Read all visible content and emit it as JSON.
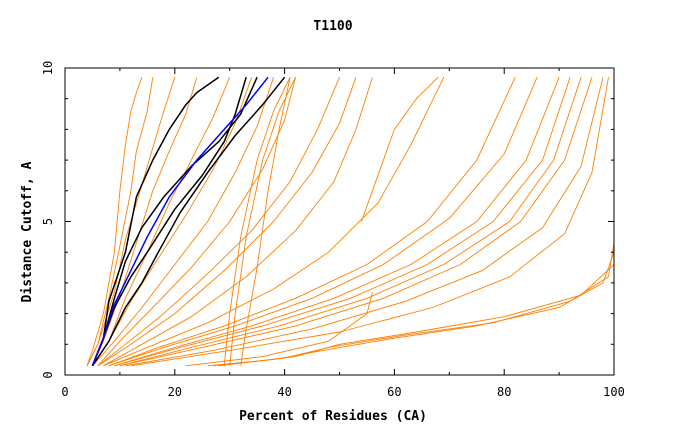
{
  "chart_data": {
    "type": "line",
    "title": "T1100",
    "xlabel": "Percent of Residues (CA)",
    "ylabel": "Distance Cutoff, A",
    "xlim": [
      0,
      100
    ],
    "ylim": [
      0,
      10
    ],
    "x_ticks": [
      0,
      20,
      40,
      60,
      80,
      100
    ],
    "y_ticks": [
      0,
      5,
      10
    ],
    "grid": false,
    "colors": {
      "bulk": "#ff8000",
      "highlight": "#000000",
      "best": "#0000ff"
    },
    "series_groups": [
      {
        "role": "bulk",
        "color": "#ff8000",
        "curves": [
          {
            "x": [
              4,
              5,
              7,
              9,
              10,
              11,
              12,
              13,
              14
            ],
            "y": [
              0.3,
              0.8,
              2,
              4,
              6,
              7.5,
              8.6,
              9.2,
              9.7
            ]
          },
          {
            "x": [
              4,
              6,
              8,
              10,
              12,
              13,
              15,
              16
            ],
            "y": [
              0.3,
              1,
              2.5,
              4.2,
              6,
              7.3,
              8.6,
              9.7
            ]
          },
          {
            "x": [
              4,
              6,
              9,
              11,
              14,
              16,
              18,
              20
            ],
            "y": [
              0.3,
              1,
              2.7,
              4.4,
              6.2,
              7.4,
              8.6,
              9.7
            ]
          },
          {
            "x": [
              5,
              7,
              10,
              13,
              16,
              19,
              22,
              24
            ],
            "y": [
              0.3,
              1.1,
              2.6,
              4.3,
              6,
              7.3,
              8.5,
              9.7
            ]
          },
          {
            "x": [
              5,
              8,
              11,
              15,
              19,
              23,
              27,
              30
            ],
            "y": [
              0.3,
              1.1,
              2.5,
              4,
              5.6,
              7,
              8.4,
              9.7
            ]
          },
          {
            "x": [
              5,
              8,
              12,
              17,
              22,
              27,
              31,
              34
            ],
            "y": [
              0.3,
              1.1,
              2.4,
              3.8,
              5.2,
              6.7,
              8.2,
              9.7
            ]
          },
          {
            "x": [
              5,
              9,
              14,
              20,
              26,
              31,
              35,
              38
            ],
            "y": [
              0.3,
              1.1,
              2.2,
              3.6,
              5,
              6.6,
              8.1,
              9.7
            ]
          },
          {
            "x": [
              6,
              10,
              16,
              23,
              30,
              36,
              40,
              42
            ],
            "y": [
              0.3,
              1.1,
              2.2,
              3.5,
              5,
              6.7,
              8.3,
              9.7
            ]
          },
          {
            "x": [
              6,
              11,
              18,
              26,
              34,
              41,
              46,
              50
            ],
            "y": [
              0.3,
              1,
              2,
              3.3,
              4.7,
              6.3,
              8,
              9.7
            ]
          },
          {
            "x": [
              6,
              12,
              20,
              29,
              38,
              45,
              50,
              53
            ],
            "y": [
              0.3,
              1,
              2,
              3.4,
              5,
              6.6,
              8.2,
              9.7
            ]
          },
          {
            "x": [
              7,
              14,
              23,
              33,
              42,
              49,
              53,
              56
            ],
            "y": [
              0.3,
              1,
              1.9,
              3.2,
              4.7,
              6.3,
              8,
              9.7
            ]
          },
          {
            "x": [
              7,
              15,
              26,
              38,
              48,
              57,
              63,
              69
            ],
            "y": [
              0.3,
              0.9,
              1.7,
              2.8,
              4,
              5.6,
              7.5,
              9.7
            ]
          },
          {
            "x": [
              8,
              17,
              29,
              42,
              55,
              66,
              75,
              82
            ],
            "y": [
              0.3,
              0.9,
              1.6,
              2.5,
              3.6,
              5,
              7,
              9.7
            ]
          },
          {
            "x": [
              8,
              18,
              31,
              45,
              58,
              70,
              80,
              86
            ],
            "y": [
              0.3,
              0.9,
              1.6,
              2.5,
              3.6,
              5.1,
              7.2,
              9.7
            ]
          },
          {
            "x": [
              9,
              20,
              34,
              49,
              63,
              75,
              84,
              90
            ],
            "y": [
              0.3,
              0.9,
              1.6,
              2.5,
              3.6,
              5,
              7,
              9.7
            ]
          },
          {
            "x": [
              9,
              21,
              36,
              52,
              66,
              78,
              87,
              92
            ],
            "y": [
              0.3,
              0.9,
              1.6,
              2.5,
              3.6,
              5,
              7,
              9.7
            ]
          },
          {
            "x": [
              10,
              23,
              39,
              55,
              69,
              81,
              89,
              94
            ],
            "y": [
              0.3,
              0.9,
              1.6,
              2.5,
              3.6,
              5,
              7,
              9.7
            ]
          },
          {
            "x": [
              10,
              25,
              42,
              58,
              72,
              83,
              91,
              96
            ],
            "y": [
              0.3,
              0.9,
              1.6,
              2.5,
              3.6,
              5,
              7,
              9.7
            ]
          },
          {
            "x": [
              11,
              27,
              45,
              62,
              76,
              87,
              94,
              98
            ],
            "y": [
              0.3,
              0.8,
              1.5,
              2.4,
              3.4,
              4.8,
              6.8,
              9.7
            ]
          },
          {
            "x": [
              12,
              30,
              50,
              67,
              81,
              91,
              96,
              99
            ],
            "y": [
              0.3,
              0.8,
              1.4,
              2.2,
              3.2,
              4.6,
              6.6,
              9.7
            ]
          },
          {
            "x": [
              26,
              38,
              47,
              60,
              75,
              90,
              98,
              100
            ],
            "y": [
              0.3,
              0.5,
              0.8,
              1.2,
              1.6,
              2.2,
              3,
              4
            ]
          },
          {
            "x": [
              27,
              40,
              48,
              62,
              78,
              92,
              99,
              100
            ],
            "y": [
              0.3,
              0.55,
              0.9,
              1.3,
              1.7,
              2.4,
              3.2,
              4.3
            ]
          },
          {
            "x": [
              28,
              42,
              50,
              64,
              80,
              94,
              100
            ],
            "y": [
              0.3,
              0.6,
              1,
              1.4,
              1.9,
              2.6,
              3.6
            ]
          },
          {
            "x": [
              22,
              36,
              48,
              55,
              56
            ],
            "y": [
              0.3,
              0.6,
              1.1,
              2,
              2.7
            ]
          },
          {
            "x": [
              29,
              30,
              32,
              35,
              38,
              41
            ],
            "y": [
              0.3,
              2,
              4.5,
              7,
              8.6,
              9.7
            ]
          },
          {
            "x": [
              30,
              31,
              33,
              36,
              39,
              42
            ],
            "y": [
              0.3,
              2,
              4.5,
              7,
              8.6,
              9.7
            ]
          },
          {
            "x": [
              32,
              33,
              35,
              37,
              39,
              41
            ],
            "y": [
              0.3,
              1.5,
              3.5,
              6,
              8,
              9.7
            ]
          },
          {
            "x": [
              54,
              56,
              58,
              60,
              64,
              68
            ],
            "y": [
              5,
              6,
              7,
              8,
              9,
              9.7
            ]
          },
          {
            "x": [
              100,
              100
            ],
            "y": [
              4.2,
              9.7
            ]
          }
        ]
      },
      {
        "role": "highlight",
        "color": "#000000",
        "curves": [
          {
            "x": [
              5,
              7,
              9,
              12,
              15,
              20,
              25,
              29,
              31,
              33
            ],
            "y": [
              0.3,
              1.2,
              2.2,
              3.2,
              4,
              5.4,
              6.5,
              7.6,
              8.5,
              9.7
            ]
          },
          {
            "x": [
              5,
              7,
              9,
              11,
              14,
              18,
              23,
              28,
              32,
              35
            ],
            "y": [
              0.3,
              1.2,
              2.5,
              3.7,
              4.8,
              5.8,
              6.8,
              7.6,
              8.5,
              9.7
            ]
          },
          {
            "x": [
              5,
              7,
              8,
              11,
              13,
              16,
              19,
              22,
              24,
              28
            ],
            "y": [
              0.3,
              1.2,
              2.4,
              4,
              5.8,
              7,
              8,
              8.8,
              9.2,
              9.7
            ]
          },
          {
            "x": [
              5,
              8,
              11,
              14,
              17,
              21,
              26,
              31,
              36,
              40
            ],
            "y": [
              0.3,
              1.1,
              2.2,
              3,
              4,
              5.3,
              6.6,
              7.8,
              8.8,
              9.7
            ]
          }
        ]
      },
      {
        "role": "best",
        "color": "#0000ff",
        "curves": [
          {
            "x": [
              5,
              7,
              9,
              12,
              15,
              19,
              24,
              29,
              33,
              37
            ],
            "y": [
              0.3,
              1.2,
              2.3,
              3.4,
              4.5,
              5.8,
              7,
              8,
              8.8,
              9.7
            ]
          }
        ]
      }
    ]
  }
}
